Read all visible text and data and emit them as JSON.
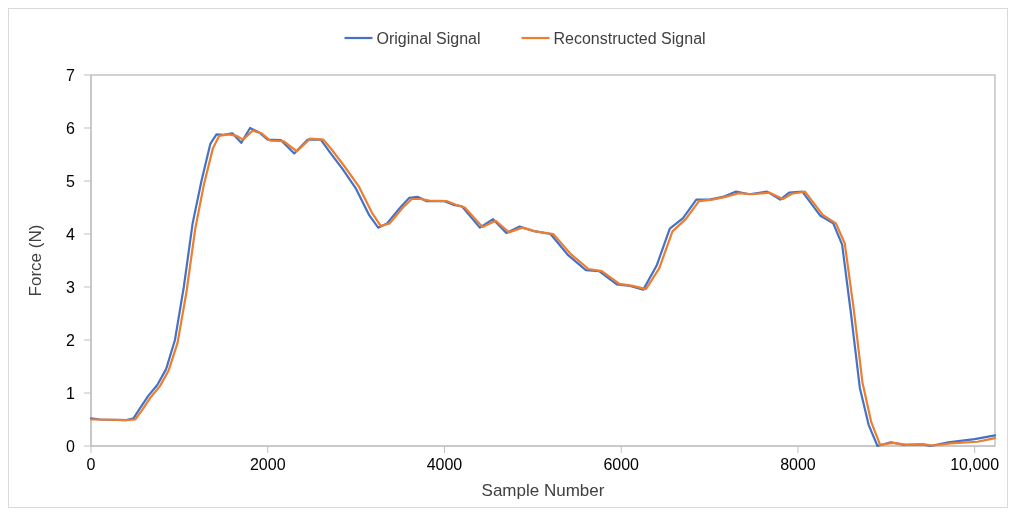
{
  "chart_data": {
    "type": "line",
    "xlabel": "Sample Number",
    "ylabel": "Force (N)",
    "xlim": [
      0,
      10230
    ],
    "xticks": [
      0,
      2000,
      4000,
      6000,
      8000,
      {
        "value": 10000,
        "label": "10,000"
      }
    ],
    "ylim": [
      0,
      7
    ],
    "yticks": [
      0,
      1,
      2,
      3,
      4,
      5,
      6,
      7
    ],
    "grid": false,
    "legend": "top",
    "marker": "none",
    "line_style": "solid",
    "series": [
      {
        "name": "Original Signal",
        "color": "#4472c4",
        "x": [
          0,
          100,
          400,
          480,
          550,
          650,
          750,
          850,
          950,
          1050,
          1150,
          1250,
          1350,
          1420,
          1500,
          1600,
          1700,
          1800,
          1900,
          2000,
          2150,
          2300,
          2450,
          2600,
          2700,
          2850,
          3000,
          3150,
          3250,
          3350,
          3500,
          3600,
          3700,
          3800,
          4000,
          4100,
          4200,
          4400,
          4550,
          4700,
          4850,
          5000,
          5200,
          5400,
          5600,
          5750,
          5950,
          6100,
          6250,
          6400,
          6550,
          6700,
          6850,
          7000,
          7150,
          7300,
          7450,
          7650,
          7800,
          7900,
          8050,
          8250,
          8400,
          8500,
          8600,
          8700,
          8800,
          8900,
          9050,
          9200,
          9400,
          9500,
          9700,
          10000,
          10230
        ],
        "values": [
          0.52,
          0.5,
          0.49,
          0.52,
          0.7,
          0.95,
          1.15,
          1.45,
          2.0,
          3.0,
          4.2,
          5.0,
          5.7,
          5.88,
          5.87,
          5.9,
          5.72,
          6.0,
          5.92,
          5.78,
          5.77,
          5.52,
          5.78,
          5.78,
          5.55,
          5.22,
          4.85,
          4.35,
          4.12,
          4.2,
          4.5,
          4.68,
          4.7,
          4.62,
          4.62,
          4.55,
          4.52,
          4.12,
          4.28,
          4.02,
          4.14,
          4.06,
          4.0,
          3.6,
          3.32,
          3.3,
          3.05,
          3.02,
          2.95,
          3.4,
          4.1,
          4.3,
          4.65,
          4.65,
          4.7,
          4.8,
          4.75,
          4.8,
          4.65,
          4.78,
          4.8,
          4.35,
          4.2,
          3.8,
          2.5,
          1.1,
          0.4,
          0.0,
          0.07,
          0.02,
          0.03,
          0.0,
          0.07,
          0.13,
          0.2
        ]
      },
      {
        "name": "Reconstructed Signal",
        "color": "#ed7d31",
        "x": [
          0,
          100,
          400,
          500,
          580,
          680,
          780,
          880,
          980,
          1080,
          1180,
          1280,
          1380,
          1450,
          1550,
          1650,
          1720,
          1830,
          1930,
          2030,
          2180,
          2330,
          2480,
          2630,
          2730,
          2880,
          3030,
          3180,
          3280,
          3380,
          3530,
          3630,
          3730,
          3830,
          4030,
          4130,
          4230,
          4430,
          4580,
          4730,
          4880,
          5030,
          5230,
          5430,
          5630,
          5780,
          5980,
          6130,
          6280,
          6430,
          6580,
          6730,
          6880,
          7030,
          7180,
          7330,
          7480,
          7680,
          7830,
          7930,
          8080,
          8280,
          8430,
          8530,
          8630,
          8730,
          8830,
          8930,
          9080,
          9230,
          9430,
          9530,
          9730,
          10030,
          10230
        ],
        "values": [
          0.5,
          0.5,
          0.49,
          0.5,
          0.68,
          0.93,
          1.13,
          1.43,
          1.95,
          2.9,
          4.1,
          4.95,
          5.62,
          5.85,
          5.88,
          5.85,
          5.78,
          5.95,
          5.9,
          5.76,
          5.75,
          5.56,
          5.8,
          5.78,
          5.58,
          5.25,
          4.9,
          4.4,
          4.15,
          4.2,
          4.5,
          4.66,
          4.66,
          4.63,
          4.62,
          4.55,
          4.5,
          4.13,
          4.25,
          4.03,
          4.12,
          4.05,
          4.0,
          3.62,
          3.34,
          3.3,
          3.06,
          3.02,
          2.96,
          3.35,
          4.05,
          4.28,
          4.62,
          4.65,
          4.7,
          4.77,
          4.75,
          4.78,
          4.66,
          4.76,
          4.8,
          4.36,
          4.2,
          3.82,
          2.6,
          1.2,
          0.45,
          0.02,
          0.06,
          0.02,
          0.03,
          0.01,
          0.05,
          0.08,
          0.15
        ]
      }
    ]
  }
}
